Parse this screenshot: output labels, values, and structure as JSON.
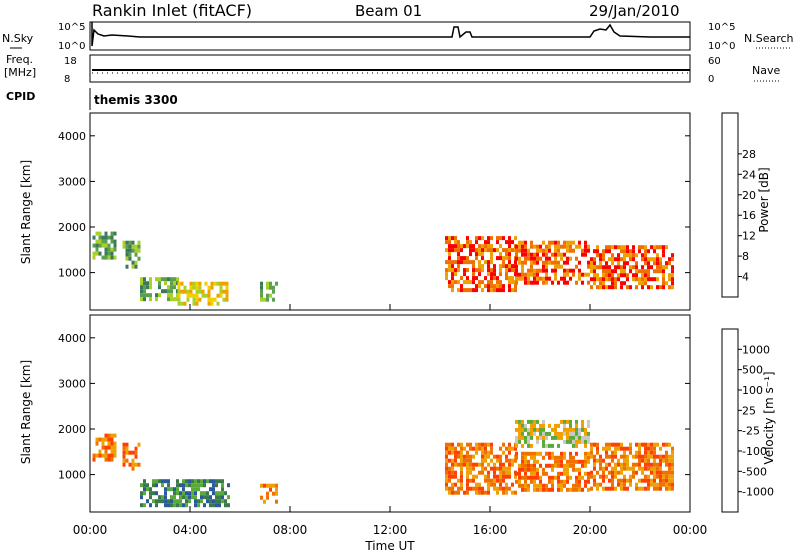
{
  "header": {
    "station": "Rankin Inlet (fitACF)",
    "beam": "Beam 01",
    "date": "29/Jan/2010"
  },
  "top_panels": {
    "nsky_label": "N.Sky",
    "nsky_ticks": [
      "10^5",
      "10^0"
    ],
    "nsearch_label": "N.Search",
    "nsearch_ticks": [
      "10^5",
      "10^0"
    ],
    "freq_label": "Freq.",
    "freq_unit": "[MHz]",
    "freq_ticks": [
      "18",
      "8"
    ],
    "nave_label": "Nave",
    "nave_ticks": [
      "60",
      "0"
    ],
    "cpid_label": "CPID",
    "cpid_value": "themis 3300"
  },
  "chart_data": [
    {
      "type": "heatmap",
      "name": "power",
      "xlabel": "",
      "ylabel": "Slant Range [km]",
      "xlim": [
        0,
        24
      ],
      "ylim": [
        180,
        4500
      ],
      "yticks": [
        1000,
        2000,
        3000,
        4000
      ],
      "colorbar": {
        "label": "Power [dB]",
        "ticks": [
          "4",
          "8",
          "12",
          "16",
          "20",
          "24",
          "28"
        ],
        "colors": [
          "#0000ff",
          "#2244aa",
          "#3a7a5a",
          "#5aa050",
          "#a8d028",
          "#f0d000",
          "#f0a000",
          "#f07000",
          "#ff0000"
        ]
      },
      "regions": [
        {
          "t0": 0.1,
          "t1": 1.0,
          "r0": 1300,
          "r1": 1900,
          "level": 3
        },
        {
          "t0": 1.3,
          "t1": 2.0,
          "r0": 1100,
          "r1": 1700,
          "level": 3
        },
        {
          "t0": 2.0,
          "t1": 3.5,
          "r0": 400,
          "r1": 900,
          "level": 3
        },
        {
          "t0": 3.5,
          "t1": 5.5,
          "r0": 300,
          "r1": 800,
          "level": 5
        },
        {
          "t0": 6.8,
          "t1": 7.5,
          "r0": 400,
          "r1": 800,
          "level": 3
        },
        {
          "t0": 14.2,
          "t1": 17.0,
          "r0": 600,
          "r1": 1800,
          "level": 7
        },
        {
          "t0": 17.0,
          "t1": 20.0,
          "r0": 800,
          "r1": 1700,
          "level": 7
        },
        {
          "t0": 20.0,
          "t1": 23.3,
          "r0": 700,
          "r1": 1600,
          "level": 7
        }
      ]
    },
    {
      "type": "heatmap",
      "name": "velocity",
      "xlabel": "Time UT",
      "ylabel": "Slant Range [km]",
      "xlim": [
        0,
        24
      ],
      "ylim": [
        180,
        4500
      ],
      "yticks": [
        1000,
        2000,
        3000,
        4000
      ],
      "xticks": [
        "00:00",
        "04:00",
        "08:00",
        "12:00",
        "16:00",
        "20:00",
        "00:00"
      ],
      "colorbar": {
        "label": "Velocity [m s⁻¹]",
        "ticks": [
          "1000",
          "500",
          "100",
          "25",
          "-25",
          "-100",
          "-500",
          "-1000"
        ],
        "colors": [
          "#0000ff",
          "#2a5a9a",
          "#3a7a4a",
          "#5aaa3a",
          "#c8c8c8",
          "#f0a000",
          "#f07000",
          "#ff4000",
          "#ff0000"
        ]
      },
      "regions": [
        {
          "t0": 0.1,
          "t1": 1.0,
          "r0": 1300,
          "r1": 1900,
          "level": 6
        },
        {
          "t0": 1.3,
          "t1": 2.0,
          "r0": 1100,
          "r1": 1700,
          "level": 6
        },
        {
          "t0": 2.0,
          "t1": 5.5,
          "r0": 300,
          "r1": 900,
          "level": 2
        },
        {
          "t0": 6.8,
          "t1": 7.5,
          "r0": 400,
          "r1": 800,
          "level": 6
        },
        {
          "t0": 14.2,
          "t1": 17.0,
          "r0": 600,
          "r1": 1700,
          "level": 6
        },
        {
          "t0": 17.0,
          "t1": 20.0,
          "r0": 1600,
          "r1": 2200,
          "level": 4
        },
        {
          "t0": 17.0,
          "t1": 20.0,
          "r0": 700,
          "r1": 1500,
          "level": 6
        },
        {
          "t0": 20.0,
          "t1": 23.3,
          "r0": 700,
          "r1": 1700,
          "level": 6
        }
      ]
    }
  ]
}
